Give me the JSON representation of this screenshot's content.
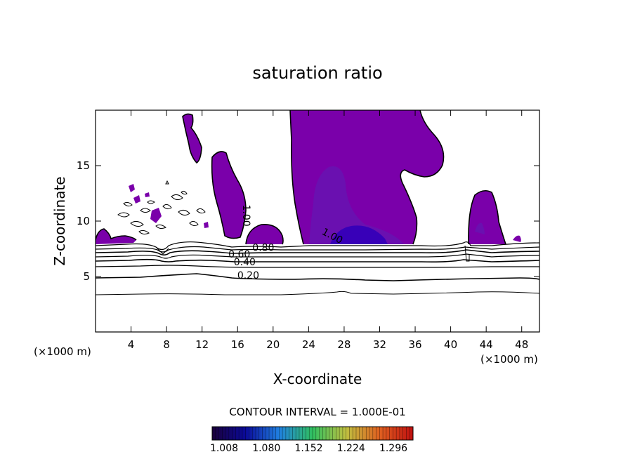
{
  "chart_data": {
    "type": "contour",
    "title": "saturation ratio",
    "xlabel": "X-coordinate",
    "ylabel": "Z-coordinate",
    "x_unit_left": "(×1000 m)",
    "x_unit_right": "(×1000 m)",
    "xlim": [
      0,
      50
    ],
    "ylim": [
      0,
      20
    ],
    "xticks": [
      4,
      8,
      12,
      16,
      20,
      24,
      28,
      32,
      36,
      40,
      44,
      48
    ],
    "yticks": [
      5,
      10,
      15
    ],
    "contour_labels": [
      {
        "text": "1.00",
        "x": 26.5,
        "y": 8.4,
        "angle": 28
      },
      {
        "text": "1.00",
        "x": 16.6,
        "y": 10.5,
        "angle": 90
      },
      {
        "text": "0.80",
        "x": 18.9,
        "y": 7.3,
        "angle": 0
      },
      {
        "text": "0.60",
        "x": 16.2,
        "y": 6.7,
        "angle": 0
      },
      {
        "text": "0.40",
        "x": 16.8,
        "y": 6.0,
        "angle": 0
      },
      {
        "text": "0.20",
        "x": 17.2,
        "y": 4.8,
        "angle": 0
      }
    ],
    "supersaturated_fill": "#7a00aa",
    "inner_fill_light": "#6a10b0",
    "inner_fill_dark": "#3800b8",
    "contour_interval_label": "CONTOUR INTERVAL = 1.000E-01",
    "colorbar": {
      "ticks": [
        "1.008",
        "1.080",
        "1.152",
        "1.224",
        "1.296"
      ],
      "colors": [
        "#1a003a",
        "#0a0a9a",
        "#2080e0",
        "#30c060",
        "#c0c040",
        "#e06020",
        "#c01010"
      ]
    }
  }
}
